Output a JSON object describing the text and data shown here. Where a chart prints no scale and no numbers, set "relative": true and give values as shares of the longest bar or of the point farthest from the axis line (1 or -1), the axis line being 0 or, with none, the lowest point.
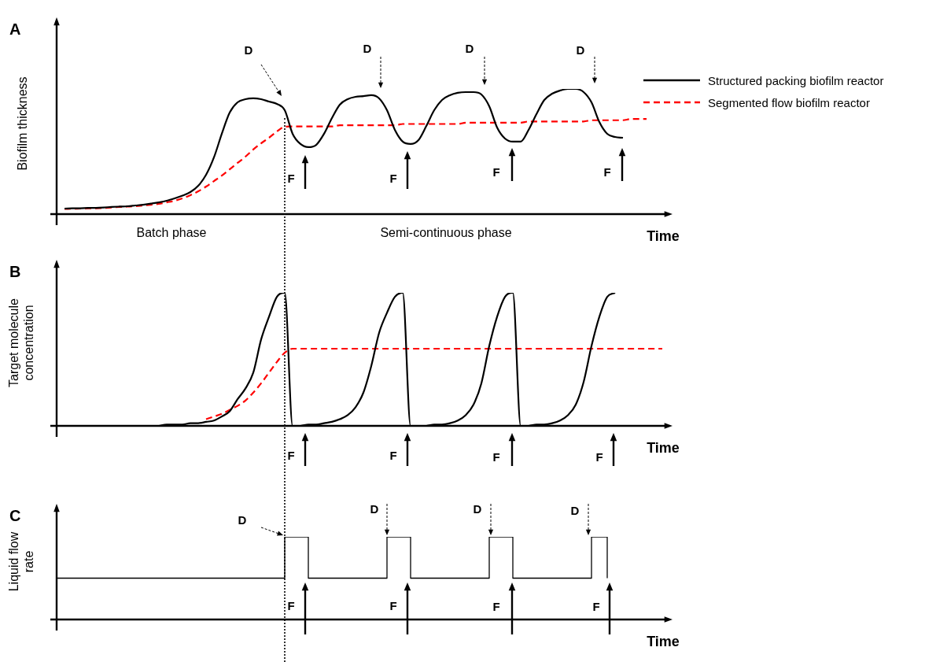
{
  "chart_data": [
    {
      "type": "line",
      "title": "A",
      "ylabel": "Biofilm thickness",
      "xlabel": "Time",
      "relative": true,
      "marker": "none",
      "legend": "top right",
      "annotations": [
        "Batch phase",
        "Semi-continuous phase",
        "D",
        "D",
        "D",
        "D",
        "F",
        "F",
        "F",
        "F"
      ],
      "categories": [
        null,
        null,
        null,
        null,
        null,
        null,
        null,
        null,
        null,
        null,
        null,
        null,
        null,
        null,
        null,
        null,
        null,
        null,
        null,
        null,
        null,
        null,
        null,
        null,
        null,
        null,
        null,
        null,
        null,
        null,
        null,
        null,
        null,
        null,
        null,
        null,
        null,
        null,
        null,
        null,
        null,
        null,
        null,
        null,
        null,
        null,
        null,
        null,
        null,
        null,
        null,
        null,
        null,
        null,
        null,
        null,
        null,
        null,
        null,
        null,
        null,
        null,
        null,
        null,
        null,
        null,
        null,
        null,
        null,
        null,
        null,
        null,
        null,
        null,
        null,
        null,
        null,
        null
      ],
      "series": [
        {
          "name": "Structured packing biofilm reactor",
          "color": "#000000",
          "line_style": "solid",
          "values": [
            null,
            0.044,
            0.046,
            0.047,
            0.049,
            0.05,
            0.053,
            0.057,
            0.06,
            0.063,
            0.069,
            0.075,
            0.084,
            0.094,
            0.107,
            0.126,
            0.148,
            0.176,
            0.226,
            0.314,
            0.453,
            0.642,
            0.811,
            0.893,
            0.918,
            0.925,
            0.918,
            0.899,
            0.881,
            0.83,
            0.642,
            0.56,
            0.535,
            0.553,
            0.642,
            0.767,
            0.874,
            0.918,
            0.937,
            0.943,
            0.95,
            0.925,
            0.83,
            0.673,
            0.579,
            0.56,
            0.591,
            0.704,
            0.83,
            0.912,
            0.95,
            0.969,
            0.975,
            0.975,
            0.956,
            0.862,
            0.692,
            0.604,
            0.579,
            0.579,
            0.673,
            0.799,
            0.912,
            0.962,
            0.987,
            1,
            1,
            0.975,
            0.893,
            0.736,
            0.642,
            0.616,
            0.61,
            null,
            null,
            null,
            null,
            null
          ]
        },
        {
          "name": "Segmented flow biofilm reactor",
          "color": "#ff0000",
          "line_style": "dashed",
          "values": [
            null,
            0.041,
            0.043,
            0.044,
            0.046,
            0.047,
            0.049,
            0.053,
            0.057,
            0.06,
            0.063,
            0.069,
            0.075,
            0.082,
            0.094,
            0.107,
            0.126,
            0.151,
            0.182,
            0.22,
            0.264,
            0.308,
            0.358,
            0.409,
            0.459,
            0.516,
            0.566,
            0.61,
            0.66,
            0.698,
            0.7,
            0.7,
            0.7,
            0.7,
            0.7,
            0.7,
            0.71,
            0.71,
            0.71,
            0.71,
            0.71,
            0.71,
            0.71,
            0.71,
            0.72,
            0.72,
            0.72,
            0.72,
            0.72,
            0.72,
            0.72,
            0.72,
            0.73,
            0.73,
            0.73,
            0.73,
            0.73,
            0.73,
            0.73,
            0.73,
            0.74,
            0.74,
            0.74,
            0.74,
            0.74,
            0.74,
            0.74,
            0.74,
            0.75,
            0.75,
            0.75,
            0.75,
            0.75,
            0.76,
            0.76,
            0.76,
            null,
            null
          ]
        }
      ]
    },
    {
      "type": "line",
      "title": "B",
      "ylabel": "Target molecule concentration",
      "xlabel": "Time",
      "relative": true,
      "marker": "none",
      "annotations": [
        "F",
        "F",
        "F",
        "F"
      ],
      "categories": [
        null,
        null,
        null,
        null,
        null,
        null,
        null,
        null,
        null,
        null,
        null,
        null,
        null,
        null,
        null,
        null,
        null,
        null,
        null,
        null,
        null,
        null,
        null,
        null,
        null,
        null,
        null,
        null,
        null,
        null,
        null,
        null,
        null,
        null,
        null,
        null,
        null,
        null,
        null,
        null,
        null,
        null,
        null,
        null,
        null,
        null,
        null,
        null,
        null,
        null,
        null,
        null,
        null,
        null,
        null,
        null,
        null,
        null,
        null,
        null,
        null,
        null,
        null,
        null,
        null,
        null,
        null,
        null,
        null,
        null,
        null,
        null,
        null,
        null,
        null,
        null,
        null,
        null
      ],
      "series": [
        {
          "color": "#000000",
          "line_style": "solid",
          "values": [
            null,
            null,
            null,
            null,
            null,
            null,
            null,
            null,
            null,
            null,
            null,
            null,
            null,
            0,
            0.01,
            0.01,
            0.01,
            0.02,
            0.02,
            0.03,
            0.04,
            0.07,
            0.11,
            0.2,
            0.28,
            0.4,
            0.65,
            0.82,
            0.97,
            1,
            0,
            0,
            0.01,
            0.01,
            0.02,
            0.03,
            0.05,
            0.08,
            0.14,
            0.25,
            0.45,
            0.7,
            0.85,
            0.97,
            1,
            0,
            0,
            0,
            0.01,
            0.01,
            0.02,
            0.04,
            0.08,
            0.16,
            0.32,
            0.6,
            0.82,
            0.97,
            1,
            0,
            0,
            0.01,
            0.01,
            0.02,
            0.04,
            0.08,
            0.16,
            0.33,
            0.6,
            0.82,
            0.97,
            1,
            null,
            null,
            null,
            null,
            null,
            null
          ]
        },
        {
          "color": "#ff0000",
          "line_style": "dashed",
          "values": [
            null,
            null,
            null,
            null,
            null,
            null,
            null,
            null,
            null,
            null,
            null,
            null,
            null,
            null,
            null,
            null,
            null,
            null,
            null,
            0.05,
            0.07,
            0.09,
            0.12,
            0.15,
            0.19,
            0.25,
            0.32,
            0.4,
            0.48,
            0.55,
            0.58,
            0.58,
            0.58,
            0.58,
            0.58,
            0.58,
            0.58,
            0.58,
            0.58,
            0.58,
            0.58,
            0.58,
            0.58,
            0.58,
            0.58,
            0.58,
            0.58,
            0.58,
            0.58,
            0.58,
            0.58,
            0.58,
            0.58,
            0.58,
            0.58,
            0.58,
            0.58,
            0.58,
            0.58,
            0.58,
            0.58,
            0.58,
            0.58,
            0.58,
            0.58,
            0.58,
            0.58,
            0.58,
            0.58,
            0.58,
            0.58,
            0.58,
            0.58,
            0.58,
            0.58,
            0.58,
            0.58,
            0.58
          ]
        }
      ]
    },
    {
      "type": "step",
      "title": "C",
      "ylabel": "Liquid flow rate",
      "xlabel": "Time",
      "relative": true,
      "marker": "none",
      "annotations": [
        "D",
        "D",
        "D",
        "D",
        "F",
        "F",
        "F",
        "F"
      ],
      "categories": [
        null,
        null,
        null,
        null,
        null,
        null,
        null,
        null,
        null,
        null,
        null,
        null,
        null,
        null,
        null,
        null,
        null,
        null,
        null,
        null,
        null,
        null,
        null,
        null,
        null,
        null,
        null,
        null,
        null,
        null,
        null,
        null,
        null,
        null,
        null,
        null,
        null,
        null,
        null,
        null,
        null,
        null,
        null,
        null,
        null,
        null,
        null,
        null,
        null,
        null,
        null,
        null,
        null,
        null,
        null,
        null,
        null,
        null,
        null,
        null,
        null,
        null,
        null,
        null,
        null,
        null,
        null,
        null,
        null,
        null,
        null,
        null,
        null,
        null,
        null,
        null,
        null,
        null
      ],
      "series": [
        {
          "color": "#000000",
          "line_style": "solid",
          "values": [
            0.5,
            0.5,
            0.5,
            0.5,
            0.5,
            0.5,
            0.5,
            0.5,
            0.5,
            0.5,
            0.5,
            0.5,
            0.5,
            0.5,
            0.5,
            0.5,
            0.5,
            0.5,
            0.5,
            0.5,
            0.5,
            0.5,
            0.5,
            0.5,
            0.5,
            0.5,
            0.5,
            0.5,
            0.5,
            1,
            1,
            1,
            0.5,
            0.5,
            0.5,
            0.5,
            0.5,
            0.5,
            0.5,
            0.5,
            0.5,
            0.5,
            1,
            1,
            1,
            0.5,
            0.5,
            0.5,
            0.5,
            0.5,
            0.5,
            0.5,
            0.5,
            0.5,
            0.5,
            1,
            1,
            1,
            0.5,
            0.5,
            0.5,
            0.5,
            0.5,
            0.5,
            0.5,
            0.5,
            0.5,
            0.5,
            1,
            1,
            0.5,
            null,
            null,
            null,
            null,
            null,
            null,
            null
          ]
        }
      ]
    }
  ]
}
